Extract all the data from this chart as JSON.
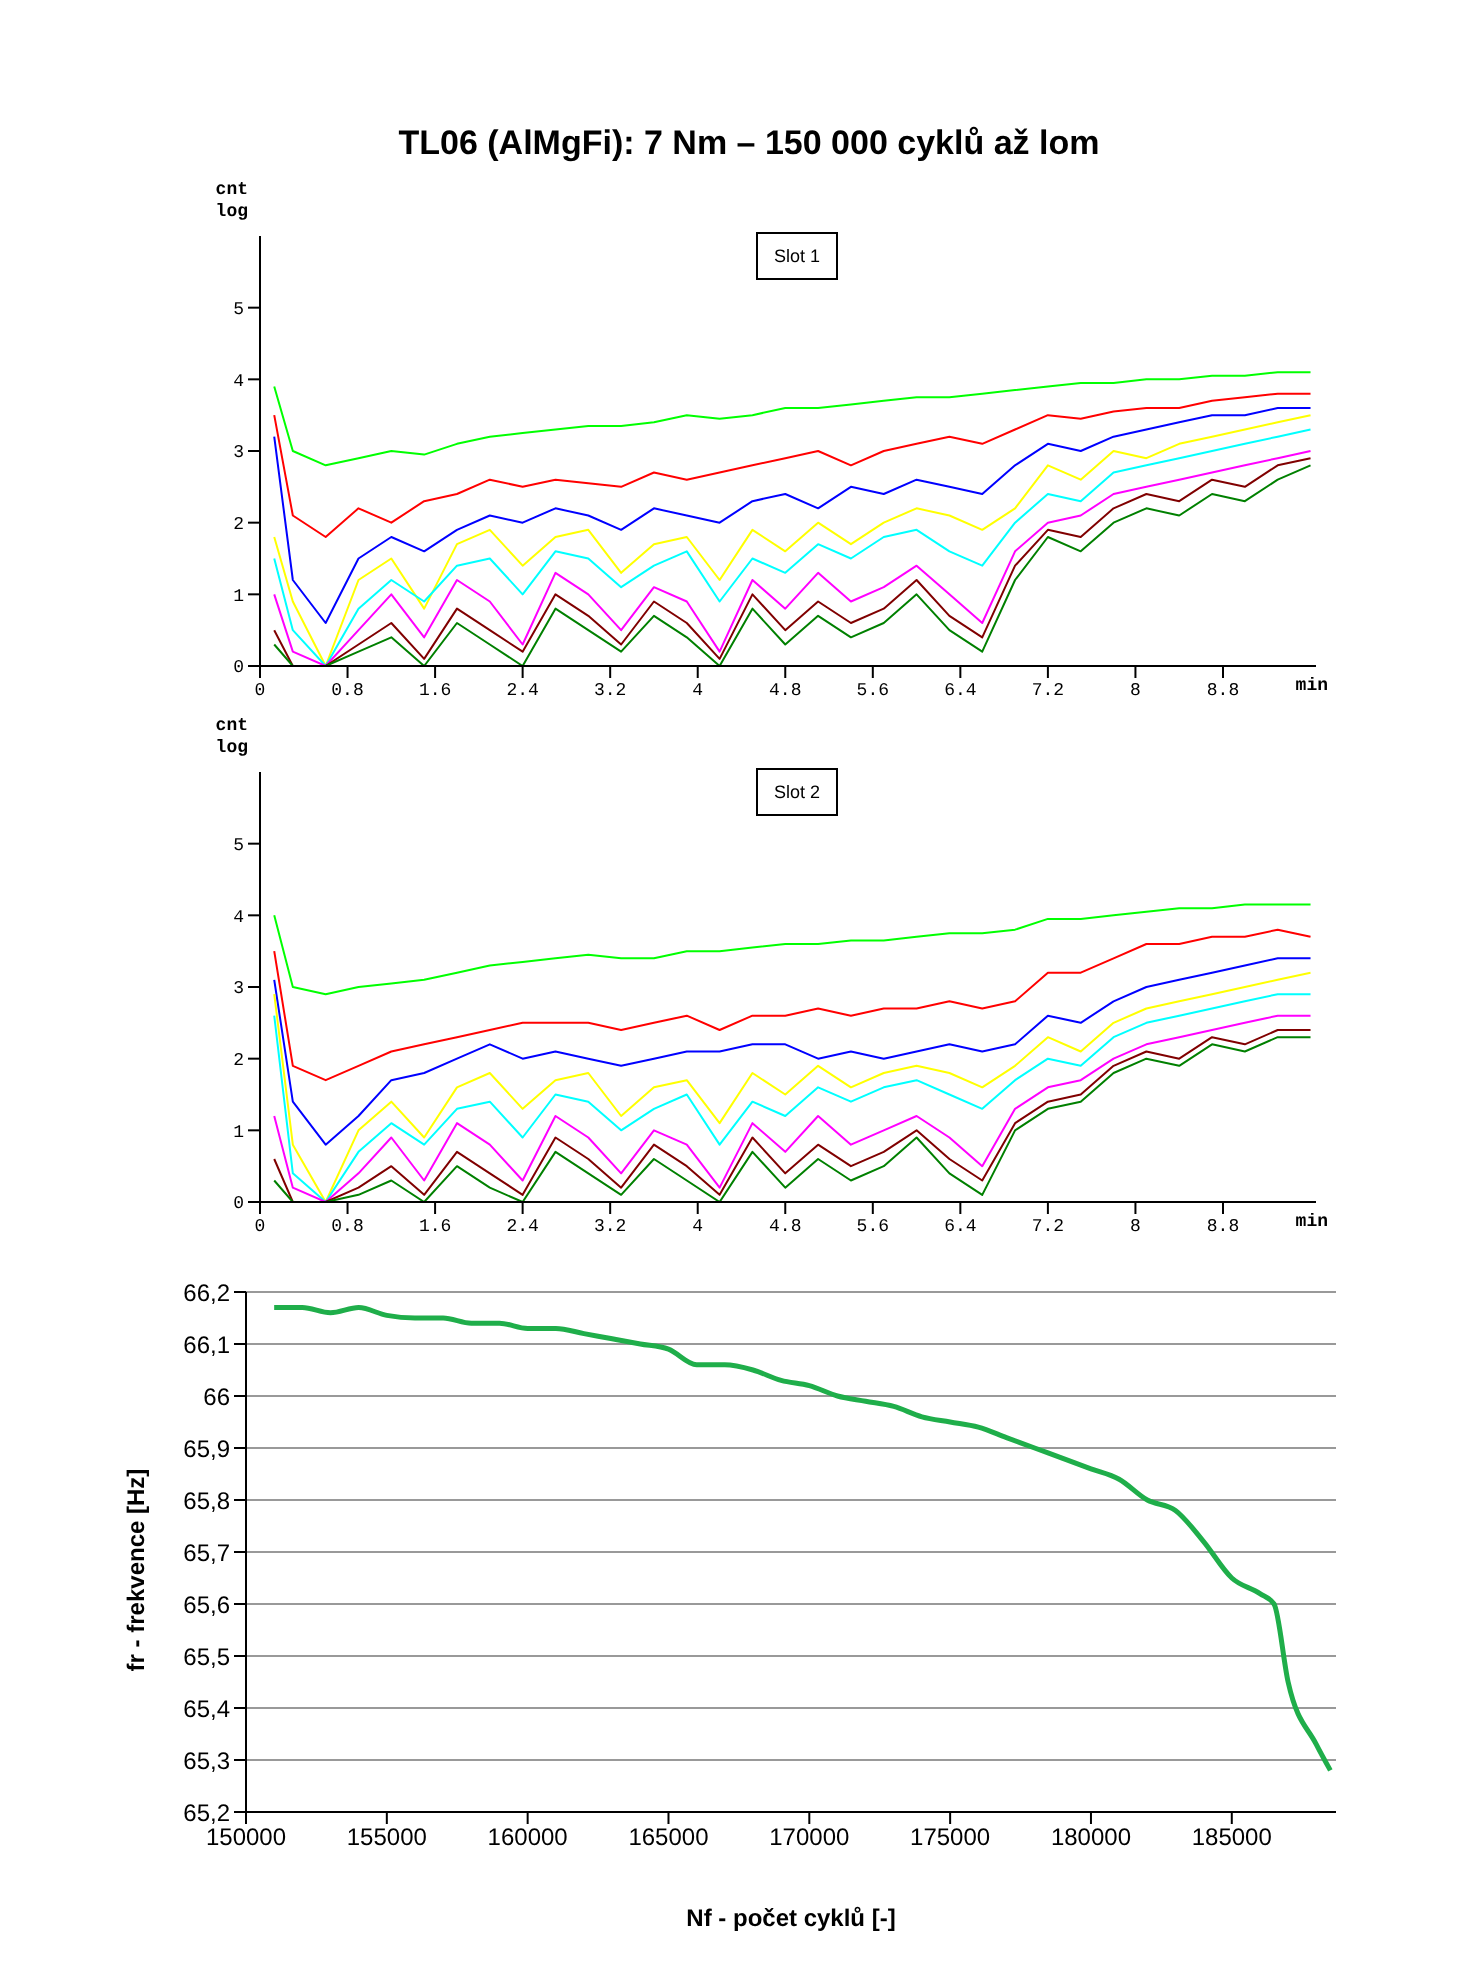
{
  "chart_data": [
    {
      "type": "line",
      "title": "TL06 (AlMgFi): 7 Nm – 150 000 cyklů až lom",
      "ylabel": "cnt log",
      "xlabel": "min",
      "annotations": [
        "Slot 1"
      ],
      "marker": "none",
      "grid": false,
      "xlim": [
        0,
        9.65
      ],
      "ylim": [
        0,
        6
      ],
      "xticks": [
        0,
        0.8,
        1.6,
        2.4,
        3.2,
        4,
        4.8,
        5.6,
        6.4,
        7.2,
        8,
        8.8
      ],
      "yticks": [
        0,
        1,
        2,
        3,
        4,
        5
      ],
      "x": [
        0.13,
        0.3,
        0.6,
        0.9,
        1.2,
        1.5,
        1.8,
        2.1,
        2.4,
        2.7,
        3.0,
        3.3,
        3.6,
        3.9,
        4.2,
        4.5,
        4.8,
        5.1,
        5.4,
        5.7,
        6.0,
        6.3,
        6.6,
        6.9,
        7.2,
        7.5,
        7.8,
        8.1,
        8.4,
        8.7,
        9.0,
        9.3,
        9.6
      ],
      "series": [
        {
          "color": "#00ff00",
          "values": [
            3.9,
            3.0,
            2.8,
            2.9,
            3.0,
            2.95,
            3.1,
            3.2,
            3.25,
            3.3,
            3.35,
            3.35,
            3.4,
            3.5,
            3.45,
            3.5,
            3.6,
            3.6,
            3.65,
            3.7,
            3.75,
            3.75,
            3.8,
            3.85,
            3.9,
            3.95,
            3.95,
            4.0,
            4.0,
            4.05,
            4.05,
            4.1,
            4.1
          ]
        },
        {
          "color": "#ff0000",
          "values": [
            3.5,
            2.1,
            1.8,
            2.2,
            2.0,
            2.3,
            2.4,
            2.6,
            2.5,
            2.6,
            2.55,
            2.5,
            2.7,
            2.6,
            2.7,
            2.8,
            2.9,
            3.0,
            2.8,
            3.0,
            3.1,
            3.2,
            3.1,
            3.3,
            3.5,
            3.45,
            3.55,
            3.6,
            3.6,
            3.7,
            3.75,
            3.8,
            3.8
          ]
        },
        {
          "color": "#0000ff",
          "values": [
            3.2,
            1.2,
            0.6,
            1.5,
            1.8,
            1.6,
            1.9,
            2.1,
            2.0,
            2.2,
            2.1,
            1.9,
            2.2,
            2.1,
            2.0,
            2.3,
            2.4,
            2.2,
            2.5,
            2.4,
            2.6,
            2.5,
            2.4,
            2.8,
            3.1,
            3.0,
            3.2,
            3.3,
            3.4,
            3.5,
            3.5,
            3.6,
            3.6
          ]
        },
        {
          "color": "#ffff00",
          "values": [
            1.8,
            0.9,
            0,
            1.2,
            1.5,
            0.8,
            1.7,
            1.9,
            1.4,
            1.8,
            1.9,
            1.3,
            1.7,
            1.8,
            1.2,
            1.9,
            1.6,
            2.0,
            1.7,
            2.0,
            2.2,
            2.1,
            1.9,
            2.2,
            2.8,
            2.6,
            3.0,
            2.9,
            3.1,
            3.2,
            3.3,
            3.4,
            3.5
          ]
        },
        {
          "color": "#00ffff",
          "values": [
            1.5,
            0.5,
            0,
            0.8,
            1.2,
            0.9,
            1.4,
            1.5,
            1.0,
            1.6,
            1.5,
            1.1,
            1.4,
            1.6,
            0.9,
            1.5,
            1.3,
            1.7,
            1.5,
            1.8,
            1.9,
            1.6,
            1.4,
            2.0,
            2.4,
            2.3,
            2.7,
            2.8,
            2.9,
            3.0,
            3.1,
            3.2,
            3.3
          ]
        },
        {
          "color": "#ff00ff",
          "values": [
            1.0,
            0.2,
            0,
            0.5,
            1.0,
            0.4,
            1.2,
            0.9,
            0.3,
            1.3,
            1.0,
            0.5,
            1.1,
            0.9,
            0.2,
            1.2,
            0.8,
            1.3,
            0.9,
            1.1,
            1.4,
            1.0,
            0.6,
            1.6,
            2.0,
            2.1,
            2.4,
            2.5,
            2.6,
            2.7,
            2.8,
            2.9,
            3.0
          ]
        },
        {
          "color": "#800000",
          "values": [
            0.5,
            0,
            0,
            0.3,
            0.6,
            0.1,
            0.8,
            0.5,
            0.2,
            1.0,
            0.7,
            0.3,
            0.9,
            0.6,
            0.1,
            1.0,
            0.5,
            0.9,
            0.6,
            0.8,
            1.2,
            0.7,
            0.4,
            1.4,
            1.9,
            1.8,
            2.2,
            2.4,
            2.3,
            2.6,
            2.5,
            2.8,
            2.9
          ]
        },
        {
          "color": "#008000",
          "values": [
            0.3,
            0,
            0,
            0.2,
            0.4,
            0,
            0.6,
            0.3,
            0,
            0.8,
            0.5,
            0.2,
            0.7,
            0.4,
            0,
            0.8,
            0.3,
            0.7,
            0.4,
            0.6,
            1.0,
            0.5,
            0.2,
            1.2,
            1.8,
            1.6,
            2.0,
            2.2,
            2.1,
            2.4,
            2.3,
            2.6,
            2.8
          ]
        }
      ]
    },
    {
      "type": "line",
      "ylabel": "cnt log",
      "xlabel": "min",
      "annotations": [
        "Slot 2"
      ],
      "marker": "none",
      "grid": false,
      "xlim": [
        0,
        9.65
      ],
      "ylim": [
        0,
        6
      ],
      "xticks": [
        0,
        0.8,
        1.6,
        2.4,
        3.2,
        4,
        4.8,
        5.6,
        6.4,
        7.2,
        8,
        8.8
      ],
      "yticks": [
        0,
        1,
        2,
        3,
        4,
        5
      ],
      "x": [
        0.13,
        0.3,
        0.6,
        0.9,
        1.2,
        1.5,
        1.8,
        2.1,
        2.4,
        2.7,
        3.0,
        3.3,
        3.6,
        3.9,
        4.2,
        4.5,
        4.8,
        5.1,
        5.4,
        5.7,
        6.0,
        6.3,
        6.6,
        6.9,
        7.2,
        7.5,
        7.8,
        8.1,
        8.4,
        8.7,
        9.0,
        9.3,
        9.6
      ],
      "series": [
        {
          "color": "#00ff00",
          "values": [
            4.0,
            3.0,
            2.9,
            3.0,
            3.05,
            3.1,
            3.2,
            3.3,
            3.35,
            3.4,
            3.45,
            3.4,
            3.4,
            3.5,
            3.5,
            3.55,
            3.6,
            3.6,
            3.65,
            3.65,
            3.7,
            3.75,
            3.75,
            3.8,
            3.95,
            3.95,
            4.0,
            4.05,
            4.1,
            4.1,
            4.15,
            4.15,
            4.15
          ]
        },
        {
          "color": "#ff0000",
          "values": [
            3.5,
            1.9,
            1.7,
            1.9,
            2.1,
            2.2,
            2.3,
            2.4,
            2.5,
            2.5,
            2.5,
            2.4,
            2.5,
            2.6,
            2.4,
            2.6,
            2.6,
            2.7,
            2.6,
            2.7,
            2.7,
            2.8,
            2.7,
            2.8,
            3.2,
            3.2,
            3.4,
            3.6,
            3.6,
            3.7,
            3.7,
            3.8,
            3.7
          ]
        },
        {
          "color": "#0000ff",
          "values": [
            3.1,
            1.4,
            0.8,
            1.2,
            1.7,
            1.8,
            2.0,
            2.2,
            2.0,
            2.1,
            2.0,
            1.9,
            2.0,
            2.1,
            2.1,
            2.2,
            2.2,
            2.0,
            2.1,
            2.0,
            2.1,
            2.2,
            2.1,
            2.2,
            2.6,
            2.5,
            2.8,
            3.0,
            3.1,
            3.2,
            3.3,
            3.4,
            3.4
          ]
        },
        {
          "color": "#ffff00",
          "values": [
            2.9,
            0.8,
            0,
            1.0,
            1.4,
            0.9,
            1.6,
            1.8,
            1.3,
            1.7,
            1.8,
            1.2,
            1.6,
            1.7,
            1.1,
            1.8,
            1.5,
            1.9,
            1.6,
            1.8,
            1.9,
            1.8,
            1.6,
            1.9,
            2.3,
            2.1,
            2.5,
            2.7,
            2.8,
            2.9,
            3.0,
            3.1,
            3.2
          ]
        },
        {
          "color": "#00ffff",
          "values": [
            2.6,
            0.4,
            0,
            0.7,
            1.1,
            0.8,
            1.3,
            1.4,
            0.9,
            1.5,
            1.4,
            1.0,
            1.3,
            1.5,
            0.8,
            1.4,
            1.2,
            1.6,
            1.4,
            1.6,
            1.7,
            1.5,
            1.3,
            1.7,
            2.0,
            1.9,
            2.3,
            2.5,
            2.6,
            2.7,
            2.8,
            2.9,
            2.9
          ]
        },
        {
          "color": "#ff00ff",
          "values": [
            1.2,
            0.2,
            0,
            0.4,
            0.9,
            0.3,
            1.1,
            0.8,
            0.3,
            1.2,
            0.9,
            0.4,
            1.0,
            0.8,
            0.2,
            1.1,
            0.7,
            1.2,
            0.8,
            1.0,
            1.2,
            0.9,
            0.5,
            1.3,
            1.6,
            1.7,
            2.0,
            2.2,
            2.3,
            2.4,
            2.5,
            2.6,
            2.6
          ]
        },
        {
          "color": "#800000",
          "values": [
            0.6,
            0,
            0,
            0.2,
            0.5,
            0.1,
            0.7,
            0.4,
            0.1,
            0.9,
            0.6,
            0.2,
            0.8,
            0.5,
            0.1,
            0.9,
            0.4,
            0.8,
            0.5,
            0.7,
            1.0,
            0.6,
            0.3,
            1.1,
            1.4,
            1.5,
            1.9,
            2.1,
            2.0,
            2.3,
            2.2,
            2.4,
            2.4
          ]
        },
        {
          "color": "#008000",
          "values": [
            0.3,
            0,
            0,
            0.1,
            0.3,
            0,
            0.5,
            0.2,
            0,
            0.7,
            0.4,
            0.1,
            0.6,
            0.3,
            0,
            0.7,
            0.2,
            0.6,
            0.3,
            0.5,
            0.9,
            0.4,
            0.1,
            1.0,
            1.3,
            1.4,
            1.8,
            2.0,
            1.9,
            2.2,
            2.1,
            2.3,
            2.3
          ]
        }
      ]
    },
    {
      "type": "line",
      "xlabel": "Nf - počet cyklů [-]",
      "ylabel": "fr - frekvence [Hz]",
      "marker": "none",
      "grid": "y",
      "xlim": [
        150000,
        188700
      ],
      "ylim": [
        65.2,
        66.2
      ],
      "xticks": [
        150000,
        155000,
        160000,
        165000,
        170000,
        175000,
        180000,
        185000
      ],
      "yticks": [
        {
          "value": 65.2,
          "label": "65,2"
        },
        {
          "value": 65.3,
          "label": "65,3"
        },
        {
          "value": 65.4,
          "label": "65,4"
        },
        {
          "value": 65.5,
          "label": "65,5"
        },
        {
          "value": 65.6,
          "label": "65,6"
        },
        {
          "value": 65.7,
          "label": "65,7"
        },
        {
          "value": 65.8,
          "label": "65,8"
        },
        {
          "value": 65.9,
          "label": "65,9"
        },
        {
          "value": 66,
          "label": "66"
        },
        {
          "value": 66.1,
          "label": "66,1"
        },
        {
          "value": 66.2,
          "label": "66,2"
        }
      ],
      "x": [
        151000,
        152000,
        153000,
        154000,
        155000,
        156000,
        157000,
        158000,
        159000,
        160000,
        161000,
        162000,
        163000,
        164000,
        165000,
        166000,
        167000,
        168000,
        169000,
        170000,
        171000,
        172000,
        173000,
        174000,
        175000,
        176000,
        177000,
        178000,
        179000,
        180000,
        181000,
        182000,
        183000,
        184000,
        185000,
        186000,
        186500,
        187000,
        188000,
        188500
      ],
      "series": [
        {
          "color": "#1fae4a",
          "values": [
            66.17,
            66.17,
            66.16,
            66.17,
            66.155,
            66.15,
            66.15,
            66.14,
            66.14,
            66.13,
            66.13,
            66.12,
            66.11,
            66.1,
            66.09,
            66.06,
            66.06,
            66.05,
            66.03,
            66.02,
            66.0,
            65.99,
            65.98,
            65.96,
            65.95,
            65.94,
            65.92,
            65.9,
            65.88,
            65.86,
            65.84,
            65.8,
            65.78,
            65.72,
            65.65,
            65.62,
            65.6,
            65.45,
            65.33,
            65.28
          ]
        }
      ]
    }
  ]
}
